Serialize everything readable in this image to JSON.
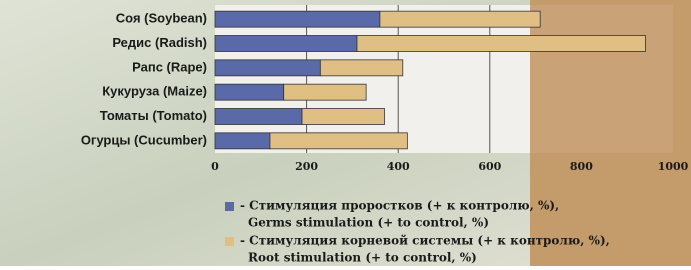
{
  "chart_data": {
    "type": "stacked-barh",
    "categories": [
      "Соя (Soybean)",
      "Редис (Radish)",
      "Рапс (Rape)",
      "Кукуруза (Maize)",
      "Томаты (Tomato)",
      "Огурцы (Cucumber)"
    ],
    "series": [
      {
        "name": "- Стимуляция проростков (+ к контролю, %),",
        "name_en": "Germs stimulation (+ to control, %)",
        "color": "#5a6aa8",
        "values": [
          360,
          310,
          230,
          150,
          190,
          120
        ]
      },
      {
        "name": "- Стимуляция корневой системы (+ к контролю, %),",
        "name_en": "Root stimulation (+ to control, %)",
        "color": "#e0bf85",
        "values": [
          350,
          630,
          180,
          180,
          180,
          300
        ]
      }
    ],
    "xlim": [
      0,
      1000
    ],
    "xticks": [
      0,
      200,
      400,
      600,
      800,
      1000
    ],
    "grid": true
  }
}
